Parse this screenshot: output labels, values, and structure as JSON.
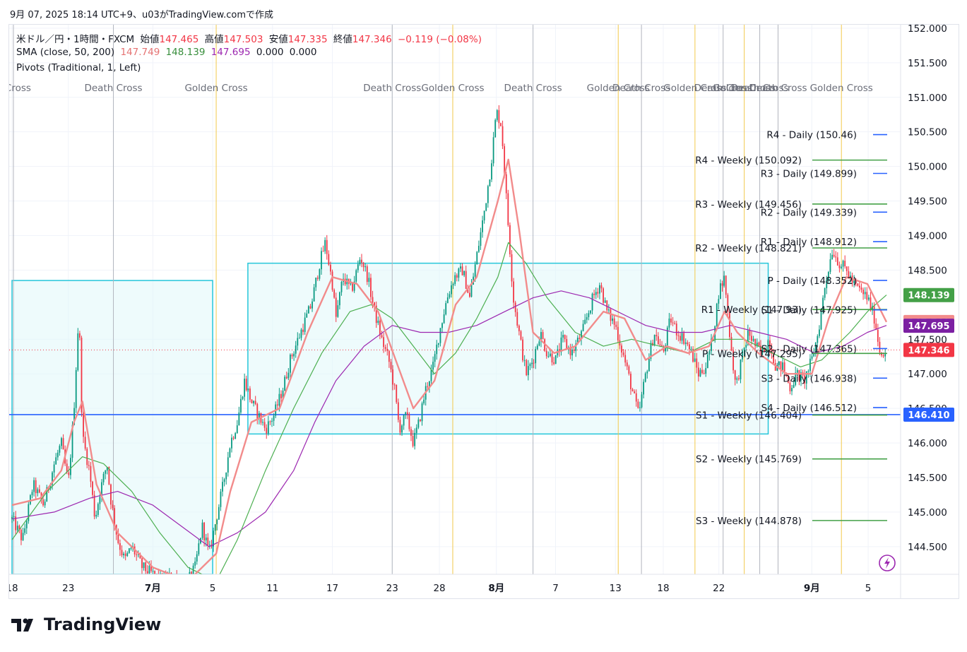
{
  "header": {
    "caption": "9月 07, 2025 18:14 UTC+9、u03がTradingView.comで作成"
  },
  "legend": {
    "symbol_line": "米ドル／円・1時間・FXCM",
    "open_label": "始値",
    "open_value": "147.465",
    "high_label": "高値",
    "high_value": "147.503",
    "low_label": "安値",
    "low_value": "147.335",
    "close_label": "終値",
    "close_value": "147.346",
    "change": "−0.119 (−0.08%)",
    "sma_label": "SMA (close, 50, 200)",
    "sma_a": "147.749",
    "sma_b": "148.139",
    "sma_c": "147.695",
    "sma_d": "0.000",
    "sma_e": "0.000",
    "pivots_label": "Pivots (Traditional, 1, Left)"
  },
  "brand": {
    "name": "TradingView"
  },
  "colors": {
    "up": "#089981",
    "down": "#f23645",
    "sma50": "#f28b8b",
    "sma100": "#4caf50",
    "sma200": "#9c27b0",
    "daily_pivot": "#2962ff",
    "weekly_pivot": "#43a047",
    "box_fill": "#e0f7fa",
    "box_stroke": "#26c6da",
    "golden_line": "#f2c94c",
    "death_line": "#b2b5be",
    "hline": "#2962ff"
  },
  "chart_data": {
    "type": "candlestick",
    "symbol": "USDJPY",
    "interval": "1H",
    "ylim": [
      144.1,
      152.05
    ],
    "y_ticks": [
      "152.000",
      "151.500",
      "151.000",
      "150.500",
      "150.000",
      "149.500",
      "149.000",
      "148.500",
      "147.500",
      "147.000",
      "146.500",
      "146.000",
      "145.500",
      "145.000",
      "144.500"
    ],
    "x_ticks": [
      {
        "label": "18",
        "t": 0
      },
      {
        "label": "23",
        "t": 80
      },
      {
        "label": "7月",
        "t": 200
      },
      {
        "label": "5",
        "t": 285
      },
      {
        "label": "11",
        "t": 370
      },
      {
        "label": "17",
        "t": 455
      },
      {
        "label": "23",
        "t": 540
      },
      {
        "label": "28",
        "t": 607
      },
      {
        "label": "8月",
        "t": 688
      },
      {
        "label": "7",
        "t": 772
      },
      {
        "label": "13",
        "t": 857
      },
      {
        "label": "18",
        "t": 925
      },
      {
        "label": "22",
        "t": 1004
      },
      {
        "label": "9月",
        "t": 1136
      },
      {
        "label": "5",
        "t": 1216
      }
    ],
    "t_max": 1242,
    "cross_events": [
      {
        "label": "n Cross",
        "t": 2,
        "type": "death"
      },
      {
        "label": "Death Cross",
        "t": 144,
        "type": "death"
      },
      {
        "label": "Golden Cross",
        "t": 290,
        "type": "golden"
      },
      {
        "label": "Death Cross",
        "t": 540,
        "type": "death"
      },
      {
        "label": "Golden Cross",
        "t": 626,
        "type": "golden"
      },
      {
        "label": "Death Cross",
        "t": 740,
        "type": "death"
      },
      {
        "label": "Golden Cross",
        "t": 861,
        "type": "golden"
      },
      {
        "label": "Death Cross",
        "t": 894,
        "type": "death"
      },
      {
        "label": "Golden Cross",
        "t": 970,
        "type": "golden"
      },
      {
        "label": "Death Cross",
        "t": 1010,
        "type": "death"
      },
      {
        "label": "Golden Cross",
        "t": 1040,
        "type": "golden"
      },
      {
        "label": "Death Cross",
        "t": 1062,
        "type": "death"
      },
      {
        "label": "Death Cross",
        "t": 1088,
        "type": "death"
      },
      {
        "label": "Golden Cross",
        "t": 1178,
        "type": "golden"
      }
    ],
    "price_path": [
      [
        0,
        144.9
      ],
      [
        15,
        144.6
      ],
      [
        30,
        145.4
      ],
      [
        45,
        145.1
      ],
      [
        60,
        145.7
      ],
      [
        70,
        146.0
      ],
      [
        80,
        145.4
      ],
      [
        88,
        146.5
      ],
      [
        95,
        147.9
      ],
      [
        100,
        146.1
      ],
      [
        110,
        145.6
      ],
      [
        118,
        144.9
      ],
      [
        125,
        145.3
      ],
      [
        135,
        145.7
      ],
      [
        140,
        145.2
      ],
      [
        150,
        144.6
      ],
      [
        160,
        144.3
      ],
      [
        170,
        144.5
      ],
      [
        185,
        144.2
      ],
      [
        200,
        144.1
      ],
      [
        215,
        144.0
      ],
      [
        230,
        144.1
      ],
      [
        245,
        143.9
      ],
      [
        260,
        144.2
      ],
      [
        270,
        144.8
      ],
      [
        280,
        144.4
      ],
      [
        290,
        144.9
      ],
      [
        300,
        145.4
      ],
      [
        310,
        146.0
      ],
      [
        320,
        146.3
      ],
      [
        330,
        146.9
      ],
      [
        340,
        146.6
      ],
      [
        350,
        146.4
      ],
      [
        360,
        146.2
      ],
      [
        372,
        146.4
      ],
      [
        385,
        146.8
      ],
      [
        395,
        147.2
      ],
      [
        410,
        147.6
      ],
      [
        425,
        148.0
      ],
      [
        437,
        148.6
      ],
      [
        445,
        148.9
      ],
      [
        455,
        148.3
      ],
      [
        460,
        147.8
      ],
      [
        470,
        148.4
      ],
      [
        482,
        148.2
      ],
      [
        495,
        148.7
      ],
      [
        505,
        148.4
      ],
      [
        515,
        147.9
      ],
      [
        525,
        147.5
      ],
      [
        535,
        147.2
      ],
      [
        543,
        146.8
      ],
      [
        550,
        146.2
      ],
      [
        560,
        146.4
      ],
      [
        570,
        146.0
      ],
      [
        578,
        146.3
      ],
      [
        588,
        146.8
      ],
      [
        598,
        147.1
      ],
      [
        607,
        147.6
      ],
      [
        618,
        148.1
      ],
      [
        628,
        148.4
      ],
      [
        640,
        148.5
      ],
      [
        650,
        148.1
      ],
      [
        660,
        148.7
      ],
      [
        670,
        149.3
      ],
      [
        680,
        150.0
      ],
      [
        688,
        150.8
      ],
      [
        695,
        150.6
      ],
      [
        703,
        149.4
      ],
      [
        712,
        148.1
      ],
      [
        720,
        147.6
      ],
      [
        730,
        147.0
      ],
      [
        740,
        147.2
      ],
      [
        750,
        147.6
      ],
      [
        760,
        147.3
      ],
      [
        772,
        147.2
      ],
      [
        782,
        147.5
      ],
      [
        795,
        147.3
      ],
      [
        810,
        147.6
      ],
      [
        825,
        148.1
      ],
      [
        835,
        148.3
      ],
      [
        845,
        147.9
      ],
      [
        857,
        147.7
      ],
      [
        870,
        147.2
      ],
      [
        880,
        146.8
      ],
      [
        890,
        146.4
      ],
      [
        900,
        147.0
      ],
      [
        912,
        147.6
      ],
      [
        925,
        147.3
      ],
      [
        935,
        147.8
      ],
      [
        945,
        147.6
      ],
      [
        955,
        147.5
      ],
      [
        965,
        147.3
      ],
      [
        975,
        147.0
      ],
      [
        985,
        147.1
      ],
      [
        995,
        147.5
      ],
      [
        1004,
        148.2
      ],
      [
        1012,
        148.4
      ],
      [
        1020,
        147.5
      ],
      [
        1028,
        146.8
      ],
      [
        1036,
        147.2
      ],
      [
        1046,
        147.6
      ],
      [
        1056,
        147.4
      ],
      [
        1065,
        147.3
      ],
      [
        1075,
        147.5
      ],
      [
        1085,
        147.1
      ],
      [
        1095,
        147.1
      ],
      [
        1105,
        146.8
      ],
      [
        1115,
        147.0
      ],
      [
        1125,
        146.9
      ],
      [
        1136,
        147.2
      ],
      [
        1145,
        147.6
      ],
      [
        1155,
        148.3
      ],
      [
        1165,
        148.8
      ],
      [
        1175,
        148.6
      ],
      [
        1185,
        148.5
      ],
      [
        1195,
        148.3
      ],
      [
        1205,
        148.2
      ],
      [
        1215,
        148.1
      ],
      [
        1225,
        147.8
      ],
      [
        1233,
        147.3
      ],
      [
        1242,
        147.35
      ]
    ],
    "sma50_path": [
      [
        0,
        145.1
      ],
      [
        40,
        145.2
      ],
      [
        70,
        145.6
      ],
      [
        88,
        146.3
      ],
      [
        100,
        146.6
      ],
      [
        120,
        145.4
      ],
      [
        150,
        144.7
      ],
      [
        200,
        144.2
      ],
      [
        250,
        144.0
      ],
      [
        290,
        144.4
      ],
      [
        310,
        145.3
      ],
      [
        340,
        146.3
      ],
      [
        380,
        146.5
      ],
      [
        420,
        147.6
      ],
      [
        455,
        148.4
      ],
      [
        490,
        148.3
      ],
      [
        520,
        147.9
      ],
      [
        545,
        147.2
      ],
      [
        570,
        146.5
      ],
      [
        600,
        146.9
      ],
      [
        630,
        148.0
      ],
      [
        660,
        148.4
      ],
      [
        690,
        149.5
      ],
      [
        705,
        150.1
      ],
      [
        720,
        149.1
      ],
      [
        740,
        147.6
      ],
      [
        770,
        147.3
      ],
      [
        800,
        147.4
      ],
      [
        840,
        147.9
      ],
      [
        870,
        147.8
      ],
      [
        900,
        147.2
      ],
      [
        930,
        147.4
      ],
      [
        960,
        147.3
      ],
      [
        990,
        147.4
      ],
      [
        1012,
        147.9
      ],
      [
        1030,
        147.6
      ],
      [
        1060,
        147.3
      ],
      [
        1100,
        147.0
      ],
      [
        1136,
        147.0
      ],
      [
        1160,
        147.8
      ],
      [
        1185,
        148.4
      ],
      [
        1215,
        148.3
      ],
      [
        1242,
        147.75
      ]
    ],
    "sma100_path": [
      [
        0,
        144.6
      ],
      [
        50,
        145.3
      ],
      [
        100,
        145.8
      ],
      [
        130,
        145.7
      ],
      [
        170,
        145.3
      ],
      [
        210,
        144.7
      ],
      [
        250,
        144.2
      ],
      [
        290,
        144.0
      ],
      [
        320,
        144.6
      ],
      [
        360,
        145.6
      ],
      [
        400,
        146.5
      ],
      [
        440,
        147.3
      ],
      [
        480,
        147.9
      ],
      [
        510,
        148.0
      ],
      [
        540,
        147.8
      ],
      [
        570,
        147.4
      ],
      [
        600,
        147.0
      ],
      [
        630,
        147.3
      ],
      [
        660,
        147.8
      ],
      [
        690,
        148.4
      ],
      [
        705,
        148.9
      ],
      [
        730,
        148.6
      ],
      [
        760,
        148.1
      ],
      [
        800,
        147.6
      ],
      [
        840,
        147.4
      ],
      [
        880,
        147.5
      ],
      [
        920,
        147.4
      ],
      [
        960,
        147.3
      ],
      [
        1000,
        147.5
      ],
      [
        1040,
        147.5
      ],
      [
        1080,
        147.3
      ],
      [
        1120,
        147.1
      ],
      [
        1150,
        147.2
      ],
      [
        1190,
        147.6
      ],
      [
        1215,
        147.9
      ],
      [
        1242,
        148.14
      ]
    ],
    "sma200_path": [
      [
        0,
        144.9
      ],
      [
        60,
        145.0
      ],
      [
        110,
        145.2
      ],
      [
        150,
        145.3
      ],
      [
        200,
        145.1
      ],
      [
        240,
        144.8
      ],
      [
        280,
        144.5
      ],
      [
        320,
        144.7
      ],
      [
        360,
        145.0
      ],
      [
        400,
        145.6
      ],
      [
        430,
        146.3
      ],
      [
        460,
        146.9
      ],
      [
        500,
        147.4
      ],
      [
        540,
        147.7
      ],
      [
        580,
        147.6
      ],
      [
        620,
        147.6
      ],
      [
        660,
        147.7
      ],
      [
        700,
        147.9
      ],
      [
        740,
        148.1
      ],
      [
        780,
        148.2
      ],
      [
        820,
        148.1
      ],
      [
        860,
        147.9
      ],
      [
        900,
        147.7
      ],
      [
        940,
        147.6
      ],
      [
        980,
        147.6
      ],
      [
        1020,
        147.7
      ],
      [
        1060,
        147.6
      ],
      [
        1100,
        147.5
      ],
      [
        1140,
        147.3
      ],
      [
        1180,
        147.4
      ],
      [
        1215,
        147.6
      ],
      [
        1242,
        147.7
      ]
    ],
    "boxes": [
      {
        "t0": 0,
        "t1": 285,
        "top": 148.35,
        "bottom": 144.1
      },
      {
        "t0": 335,
        "t1": 1074,
        "top": 148.6,
        "bottom": 146.13
      }
    ],
    "horizontal_line": {
      "price": 146.41,
      "label": "146.410"
    },
    "pivots_daily": [
      {
        "label": "R4 - Daily (150.46)",
        "price": 150.46
      },
      {
        "label": "R3 - Daily (149.899)",
        "price": 149.899
      },
      {
        "label": "R2 - Daily (149.339)",
        "price": 149.339
      },
      {
        "label": "R1 - Daily (148.912)",
        "price": 148.912
      },
      {
        "label": "P - Daily (148.352)",
        "price": 148.352
      },
      {
        "label": "S1 - Daily (147.925)",
        "price": 147.925
      },
      {
        "label": "S2 - Daily (147.365)",
        "price": 147.365
      },
      {
        "label": "S3 - Daily (146.938)",
        "price": 146.938
      },
      {
        "label": "S4 - Daily (146.512)",
        "price": 146.512
      }
    ],
    "pivots_weekly": [
      {
        "label": "R4 - Weekly (150.092)",
        "price": 150.092
      },
      {
        "label": "R3 - Weekly (149.456)",
        "price": 149.456
      },
      {
        "label": "R2 - Weekly (148.821)",
        "price": 148.821
      },
      {
        "label": "R1 - Weekly (147.93)",
        "price": 147.93
      },
      {
        "label": "P - Weekly (147.295)",
        "price": 147.295
      },
      {
        "label": "S1 - Weekly (146.404)",
        "price": 146.404
      },
      {
        "label": "S2 - Weekly (145.769)",
        "price": 145.769
      },
      {
        "label": "S3 - Weekly (144.878)",
        "price": 144.878
      }
    ],
    "price_tags": [
      {
        "label": "148.139",
        "price": 148.139,
        "color": "#43a047"
      },
      {
        "label": "147.749",
        "price": 147.749,
        "color": "#f28b8b"
      },
      {
        "label": "147.695",
        "price": 147.695,
        "color": "#7b1fa2"
      },
      {
        "label": "147.346",
        "price": 147.346,
        "color": "#f23645"
      },
      {
        "label": "146.410",
        "price": 146.41,
        "color": "#2962ff"
      }
    ],
    "last_price": 147.346
  }
}
